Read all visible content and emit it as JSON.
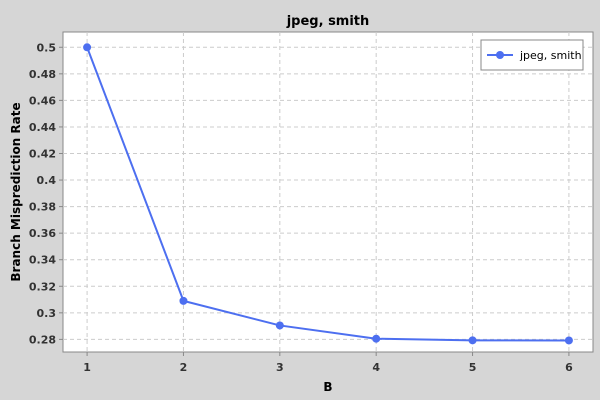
{
  "chart_data": {
    "type": "line",
    "title": "jpeg, smith",
    "xlabel": "B",
    "ylabel": "Branch Misprediction Rate",
    "x": [
      1,
      2,
      3,
      4,
      5,
      6
    ],
    "series": [
      {
        "name": "jpeg, smith",
        "values": [
          0.5,
          0.309,
          0.2905,
          0.2805,
          0.2793,
          0.2792
        ]
      }
    ],
    "xticks": [
      1,
      2,
      3,
      4,
      5,
      6
    ],
    "yticks": [
      0.28,
      0.3,
      0.32,
      0.34,
      0.36,
      0.38,
      0.4,
      0.42,
      0.44,
      0.46,
      0.48,
      0.5
    ],
    "xlim": [
      0.75,
      6.25
    ],
    "ylim": [
      0.2705,
      0.5115
    ],
    "grid": true,
    "legend_position": "top-right",
    "colors": {
      "background": "#d6d6d6",
      "plot_background": "#ffffff",
      "grid": "#cccccc",
      "series": "#4d6ff0"
    }
  }
}
